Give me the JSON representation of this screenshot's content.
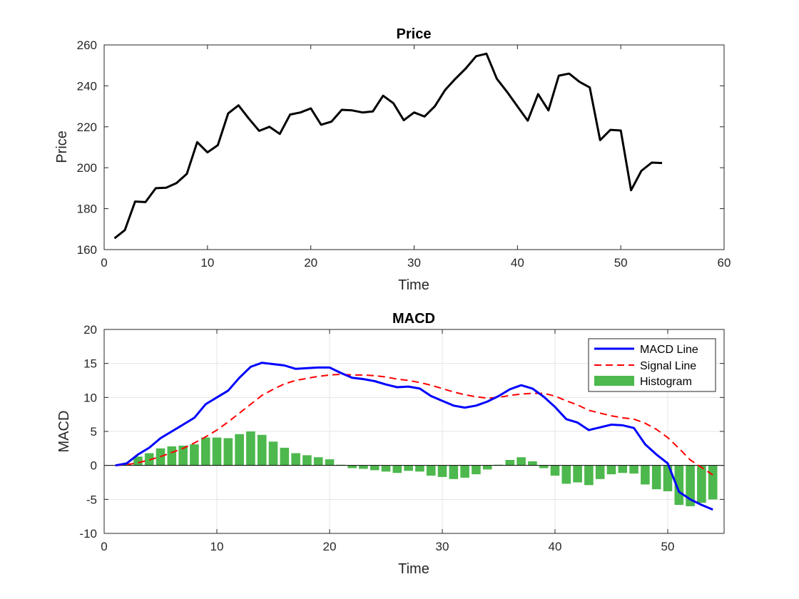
{
  "chart_data": [
    {
      "type": "line",
      "title": "Price",
      "xlabel": "Time",
      "ylabel": "Price",
      "xlim": [
        0,
        60
      ],
      "ylim": [
        160,
        260
      ],
      "xticks": [
        "0",
        "10",
        "20",
        "30",
        "40",
        "50",
        "60"
      ],
      "yticks": [
        "160",
        "180",
        "200",
        "220",
        "240",
        "260"
      ],
      "grid": false,
      "colors": {
        "series": "#000000"
      },
      "x": [
        1,
        2,
        3,
        4,
        5,
        6,
        7,
        8,
        9,
        10,
        11,
        12,
        13,
        14,
        15,
        16,
        17,
        18,
        19,
        20,
        21,
        22,
        23,
        24,
        25,
        26,
        27,
        28,
        29,
        30,
        31,
        32,
        33,
        34,
        35,
        36,
        37,
        38,
        39,
        40,
        41,
        42,
        43,
        44,
        45,
        46,
        47,
        48,
        49,
        50,
        51,
        52,
        53,
        54
      ],
      "values": [
        165.5,
        169.5,
        183.5,
        183.2,
        190,
        190.2,
        192.5,
        197,
        212.5,
        207.5,
        211,
        226.5,
        230.5,
        224,
        218,
        220,
        216.5,
        226,
        227,
        229,
        221,
        222.5,
        228.3,
        228,
        227,
        227.5,
        235.2,
        231.5,
        223.2,
        227,
        225,
        230,
        238,
        243.5,
        248.5,
        254.5,
        255.7,
        243.5,
        237,
        230,
        223,
        236,
        228,
        245,
        246,
        242,
        239.2,
        213.5,
        218.5,
        218.2,
        189,
        198.5,
        202.5,
        202.3
      ]
    },
    {
      "type": "line",
      "title": "MACD",
      "xlabel": "Time",
      "ylabel": "MACD",
      "xlim": [
        0,
        55
      ],
      "ylim": [
        -10,
        20
      ],
      "xticks": [
        "0",
        "10",
        "20",
        "30",
        "40",
        "50"
      ],
      "yticks": [
        "-10",
        "-5",
        "0",
        "5",
        "10",
        "15",
        "20"
      ],
      "grid": true,
      "legend": {
        "placement": "top-right",
        "entries": [
          "MACD Line",
          "Signal Line",
          "Histogram"
        ]
      },
      "colors": {
        "macd": "#0000ff",
        "signal": "#ff0000",
        "histogram": "#4db84d"
      },
      "x": [
        1,
        2,
        3,
        4,
        5,
        6,
        7,
        8,
        9,
        10,
        11,
        12,
        13,
        14,
        15,
        16,
        17,
        18,
        19,
        20,
        21,
        22,
        23,
        24,
        25,
        26,
        27,
        28,
        29,
        30,
        31,
        32,
        33,
        34,
        35,
        36,
        37,
        38,
        39,
        40,
        41,
        42,
        43,
        44,
        45,
        46,
        47,
        48,
        49,
        50,
        51,
        52,
        53,
        54
      ],
      "series": [
        {
          "name": "MACD Line",
          "values": [
            0,
            0.3,
            1.6,
            2.6,
            4.0,
            5.0,
            6.0,
            7.0,
            9.0,
            10.0,
            11.0,
            12.9,
            14.5,
            15.1,
            14.9,
            14.7,
            14.2,
            14.3,
            14.4,
            14.4,
            13.6,
            12.9,
            12.7,
            12.4,
            11.9,
            11.5,
            11.6,
            11.3,
            10.2,
            9.5,
            8.8,
            8.5,
            8.8,
            9.4,
            10.2,
            11.2,
            11.8,
            11.3,
            10.1,
            8.6,
            6.8,
            6.3,
            5.2,
            5.6,
            6.0,
            5.9,
            5.5,
            3.1,
            1.6,
            0.3,
            -3.9,
            -5.0,
            -5.8,
            -6.5
          ]
        },
        {
          "name": "Signal Line",
          "values": [
            0,
            0.1,
            0.4,
            0.8,
            1.3,
            1.9,
            2.5,
            3.3,
            4.2,
            5.2,
            6.4,
            7.7,
            9.0,
            10.3,
            11.2,
            12.0,
            12.5,
            12.8,
            13.1,
            13.3,
            13.4,
            13.3,
            13.3,
            13.2,
            13.0,
            12.7,
            12.5,
            12.2,
            11.8,
            11.3,
            10.8,
            10.4,
            10.1,
            9.9,
            10.0,
            10.3,
            10.5,
            10.6,
            10.6,
            10.2,
            9.5,
            8.9,
            8.1,
            7.7,
            7.3,
            7.0,
            6.8,
            6.2,
            5.3,
            4.1,
            2.5,
            0.8,
            -0.3,
            -1.4
          ]
        },
        {
          "name": "Histogram",
          "values": [
            0,
            0.3,
            1.3,
            1.8,
            2.5,
            2.8,
            2.9,
            3.1,
            4.1,
            4.1,
            4.0,
            4.6,
            5.0,
            4.5,
            3.5,
            2.6,
            1.8,
            1.5,
            1.2,
            0.9,
            0.1,
            -0.4,
            -0.5,
            -0.7,
            -0.9,
            -1.1,
            -0.8,
            -0.9,
            -1.5,
            -1.7,
            -2.0,
            -1.8,
            -1.3,
            -0.6,
            0.1,
            0.8,
            1.2,
            0.6,
            -0.4,
            -1.5,
            -2.7,
            -2.5,
            -2.9,
            -2.0,
            -1.3,
            -1.1,
            -1.2,
            -2.8,
            -3.5,
            -3.8,
            -5.8,
            -6.0,
            -5.5,
            -5.0
          ]
        }
      ]
    }
  ]
}
